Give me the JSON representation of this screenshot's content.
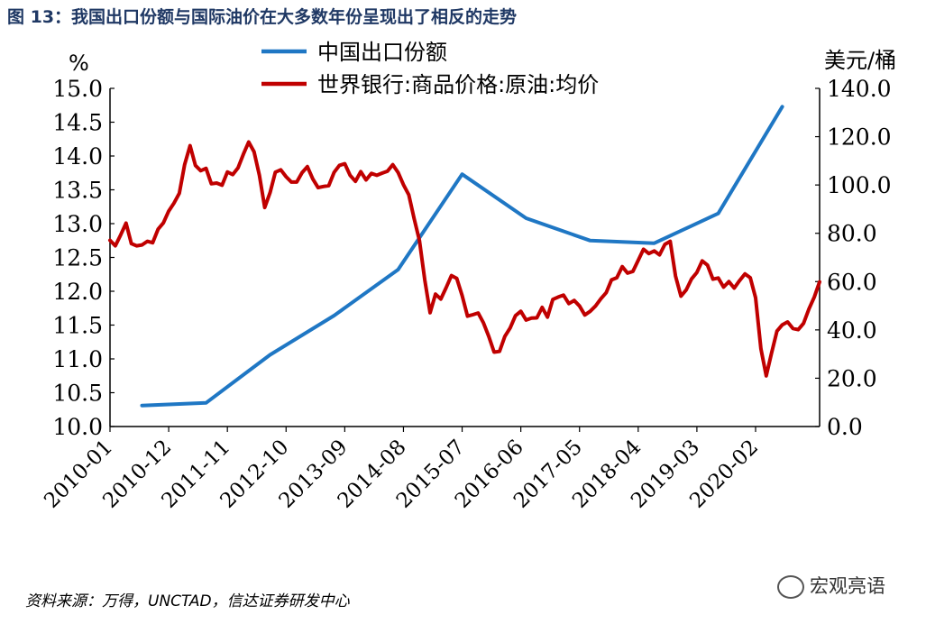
{
  "figure": {
    "title": "图 13：我国出口份额与国际油价在大多数年份呈现出了相反的走势",
    "source": "资料来源：万得，UNCTAD，信达证券研发中心",
    "watermark": "宏观亮语",
    "watermark_icon": "wechat-icon"
  },
  "chart_data": {
    "type": "line",
    "left_axis": {
      "unit": "%",
      "ylim": [
        10.0,
        15.0
      ],
      "tick_labels": [
        "10.0",
        "10.5",
        "11.0",
        "11.5",
        "12.0",
        "12.5",
        "13.0",
        "13.5",
        "14.0",
        "14.5",
        "15.0"
      ]
    },
    "right_axis": {
      "unit": "美元/桶",
      "ylim": [
        0,
        140
      ],
      "tick_labels": [
        "0.0",
        "20.0",
        "40.0",
        "60.0",
        "80.0",
        "100.0",
        "120.0",
        "140.0"
      ]
    },
    "x_tick_labels": [
      "2010-01",
      "2010-12",
      "2011-11",
      "2012-10",
      "2013-09",
      "2014-08",
      "2015-07",
      "2016-06",
      "2017-05",
      "2018-04",
      "2019-03",
      "2020-02"
    ],
    "grid": false,
    "legend_position": "top-center",
    "series": [
      {
        "name": "中国出口份额",
        "axis": "left",
        "color": "#1f77c4",
        "x": [
          "2010-07",
          "2011-07",
          "2012-07",
          "2013-07",
          "2014-07",
          "2015-07",
          "2016-07",
          "2017-07",
          "2018-07",
          "2019-07",
          "2020-07"
        ],
        "y": [
          10.31,
          10.35,
          11.06,
          11.64,
          12.32,
          13.73,
          13.08,
          12.75,
          12.71,
          13.15,
          14.73
        ]
      },
      {
        "name": "世界银行:商品价格:原油:均价",
        "axis": "right",
        "color": "#c00000",
        "x": [
          "2010-01",
          "2010-02",
          "2010-03",
          "2010-04",
          "2010-05",
          "2010-06",
          "2010-07",
          "2010-08",
          "2010-09",
          "2010-10",
          "2010-11",
          "2010-12",
          "2011-01",
          "2011-02",
          "2011-03",
          "2011-04",
          "2011-05",
          "2011-06",
          "2011-07",
          "2011-08",
          "2011-09",
          "2011-10",
          "2011-11",
          "2011-12",
          "2012-01",
          "2012-02",
          "2012-03",
          "2012-04",
          "2012-05",
          "2012-06",
          "2012-07",
          "2012-08",
          "2012-09",
          "2012-10",
          "2012-11",
          "2012-12",
          "2013-01",
          "2013-02",
          "2013-03",
          "2013-04",
          "2013-05",
          "2013-06",
          "2013-07",
          "2013-08",
          "2013-09",
          "2013-10",
          "2013-11",
          "2013-12",
          "2014-01",
          "2014-02",
          "2014-03",
          "2014-04",
          "2014-05",
          "2014-06",
          "2014-07",
          "2014-08",
          "2014-09",
          "2014-10",
          "2014-11",
          "2014-12",
          "2015-01",
          "2015-02",
          "2015-03",
          "2015-04",
          "2015-05",
          "2015-06",
          "2015-07",
          "2015-08",
          "2015-09",
          "2015-10",
          "2015-11",
          "2015-12",
          "2016-01",
          "2016-02",
          "2016-03",
          "2016-04",
          "2016-05",
          "2016-06",
          "2016-07",
          "2016-08",
          "2016-09",
          "2016-10",
          "2016-11",
          "2016-12",
          "2017-01",
          "2017-02",
          "2017-03",
          "2017-04",
          "2017-05",
          "2017-06",
          "2017-07",
          "2017-08",
          "2017-09",
          "2017-10",
          "2017-11",
          "2017-12",
          "2018-01",
          "2018-02",
          "2018-03",
          "2018-04",
          "2018-05",
          "2018-06",
          "2018-07",
          "2018-08",
          "2018-09",
          "2018-10",
          "2018-11",
          "2018-12",
          "2019-01",
          "2019-02",
          "2019-03",
          "2019-04",
          "2019-05",
          "2019-06",
          "2019-07",
          "2019-08",
          "2019-09",
          "2019-10",
          "2019-11",
          "2019-12",
          "2020-01",
          "2020-02",
          "2020-03",
          "2020-04",
          "2020-05",
          "2020-06",
          "2020-07",
          "2020-08",
          "2020-09",
          "2020-10",
          "2020-11",
          "2020-12",
          "2021-01",
          "2021-02"
        ],
        "y": [
          77.1,
          74.8,
          79.3,
          84.2,
          75.7,
          74.8,
          75.2,
          76.7,
          76.1,
          81.7,
          84.3,
          89.2,
          92.5,
          96.6,
          108.5,
          116.3,
          108.1,
          105.9,
          106.9,
          100.5,
          100.8,
          99.9,
          105.4,
          104.3,
          107.1,
          112.7,
          117.8,
          113.7,
          104.0,
          90.7,
          96.8,
          105.3,
          106.3,
          103.4,
          101.2,
          101.2,
          105.1,
          107.6,
          102.5,
          98.9,
          99.4,
          99.7,
          105.2,
          108.1,
          108.8,
          104.0,
          101.5,
          105.5,
          102.1,
          104.8,
          104.0,
          104.9,
          105.7,
          108.4,
          105.2,
          100.1,
          95.9,
          86.1,
          77.0,
          60.7,
          47.1,
          54.8,
          52.8,
          57.5,
          62.5,
          61.3,
          54.3,
          45.7,
          46.3,
          47.0,
          42.9,
          37.3,
          30.8,
          31.1,
          37.3,
          40.8,
          45.9,
          47.7,
          44.1,
          44.9,
          45.0,
          49.3,
          45.3,
          52.6,
          53.6,
          54.4,
          50.9,
          52.2,
          49.9,
          46.2,
          47.7,
          49.9,
          52.9,
          55.4,
          60.7,
          61.6,
          66.2,
          63.5,
          64.2,
          68.8,
          73.4,
          71.6,
          72.7,
          71.1,
          75.4,
          76.7,
          62.3,
          54.0,
          56.6,
          61.1,
          63.8,
          68.6,
          66.8,
          61.0,
          61.5,
          57.7,
          60.0,
          57.3,
          60.4,
          63.2,
          61.6,
          53.3,
          32.2,
          21.0,
          30.4,
          39.5,
          42.1,
          43.3,
          40.6,
          40.1,
          42.7,
          48.7,
          53.6,
          59.9
        ]
      }
    ]
  }
}
